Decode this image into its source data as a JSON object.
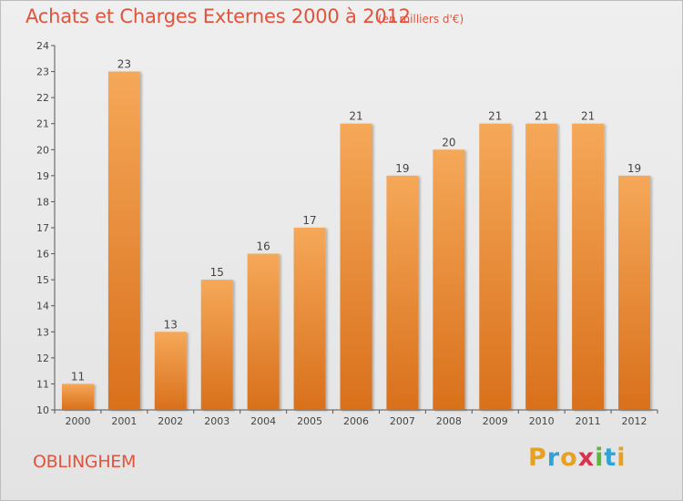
{
  "chart_data": {
    "type": "bar",
    "title": "Achats et Charges Externes 2000 à 2012",
    "subtitle": "(en milliers d'€)",
    "categories": [
      "2000",
      "2001",
      "2002",
      "2003",
      "2004",
      "2005",
      "2006",
      "2007",
      "2008",
      "2009",
      "2010",
      "2011",
      "2012"
    ],
    "values": [
      11,
      23,
      13,
      15,
      16,
      17,
      21,
      19,
      20,
      21,
      21,
      21,
      19
    ],
    "ylim": [
      10,
      24
    ],
    "yticks": [
      10,
      11,
      12,
      13,
      14,
      15,
      16,
      17,
      18,
      19,
      20,
      21,
      22,
      23,
      24
    ],
    "grid": false,
    "bar_color": "#f08a30",
    "bar_color_light": "#f5a858",
    "bar_color_dark": "#d9701c"
  },
  "footer": {
    "place": "OBLINGHEM",
    "brand": [
      "P",
      "r",
      "o",
      "x",
      "i",
      "t",
      "i"
    ],
    "brand_colors": [
      "#e8a020",
      "#2fa3d8",
      "#e8a020",
      "#d8324e",
      "#5cb83c",
      "#2fa3d8",
      "#e8a020"
    ]
  },
  "colors": {
    "accent": "#e0543d",
    "axis": "#555555"
  }
}
